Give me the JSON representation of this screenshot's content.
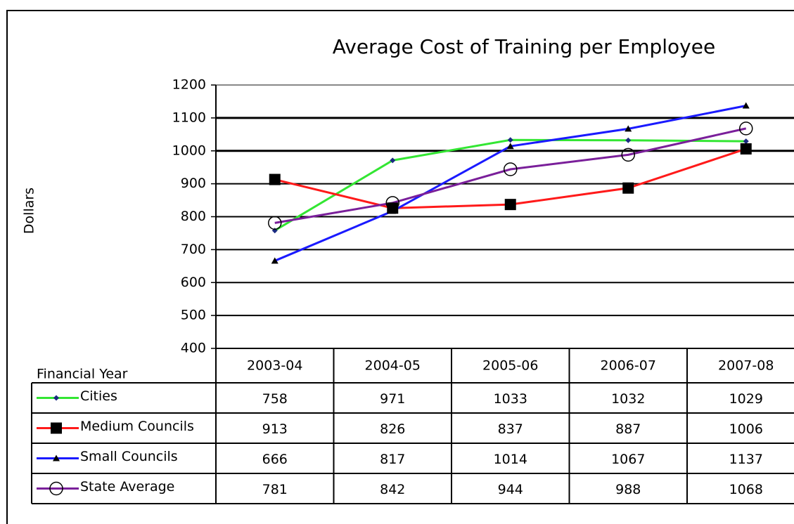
{
  "chart_data": {
    "type": "line",
    "title": "Average Cost of Training per Employee",
    "y_label": "Dollars",
    "x_label": "Financial Year",
    "categories": [
      "2003-04",
      "2004-05",
      "2005-06",
      "2006-07",
      "2007-08"
    ],
    "series": [
      {
        "name": "Cities",
        "color": "#33e633",
        "marker": "diamond",
        "values": [
          758,
          971,
          1033,
          1032,
          1029
        ]
      },
      {
        "name": "Medium Councils",
        "color": "#ff1a1a",
        "marker": "square",
        "values": [
          913,
          826,
          837,
          887,
          1006
        ]
      },
      {
        "name": "Small Councils",
        "color": "#1a1aff",
        "marker": "triangle",
        "values": [
          666,
          817,
          1014,
          1067,
          1137
        ]
      },
      {
        "name": "State Average",
        "color": "#7a1f9a",
        "marker": "circle",
        "values": [
          781,
          842,
          944,
          988,
          1068
        ]
      }
    ],
    "ylim": [
      400,
      1200
    ],
    "yticks": [
      400,
      500,
      600,
      700,
      800,
      900,
      1000,
      1100,
      1200
    ],
    "grid": true
  }
}
